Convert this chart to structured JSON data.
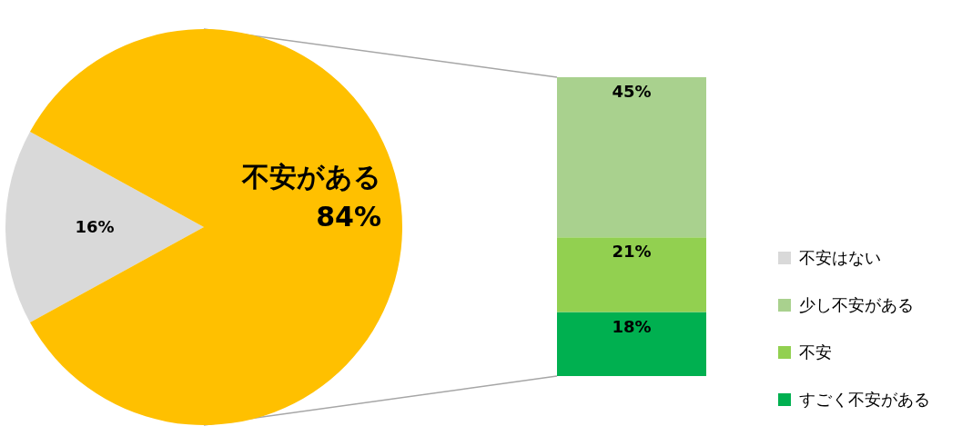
{
  "chart_data": [
    {
      "type": "pie",
      "categories": [
        "不安はない",
        "不安がある"
      ],
      "values": [
        16,
        84
      ],
      "colors": [
        "#d9d9d9",
        "#ffc000"
      ],
      "value_labels": [
        "16%",
        "84%"
      ],
      "legend": "right"
    },
    {
      "type": "bar",
      "stacked": true,
      "categories": [
        null
      ],
      "legend": "right",
      "series": [
        {
          "name": "すごく不安がある",
          "color": "#00b050",
          "values": [
            18
          ],
          "value_labels": [
            "18%"
          ]
        },
        {
          "name": "不安",
          "color": "#92d050",
          "values": [
            21
          ],
          "value_labels": [
            "21%"
          ]
        },
        {
          "name": "少し不安がある",
          "color": "#a9d18e",
          "values": [
            45
          ],
          "value_labels": [
            "45%"
          ]
        }
      ]
    }
  ]
}
